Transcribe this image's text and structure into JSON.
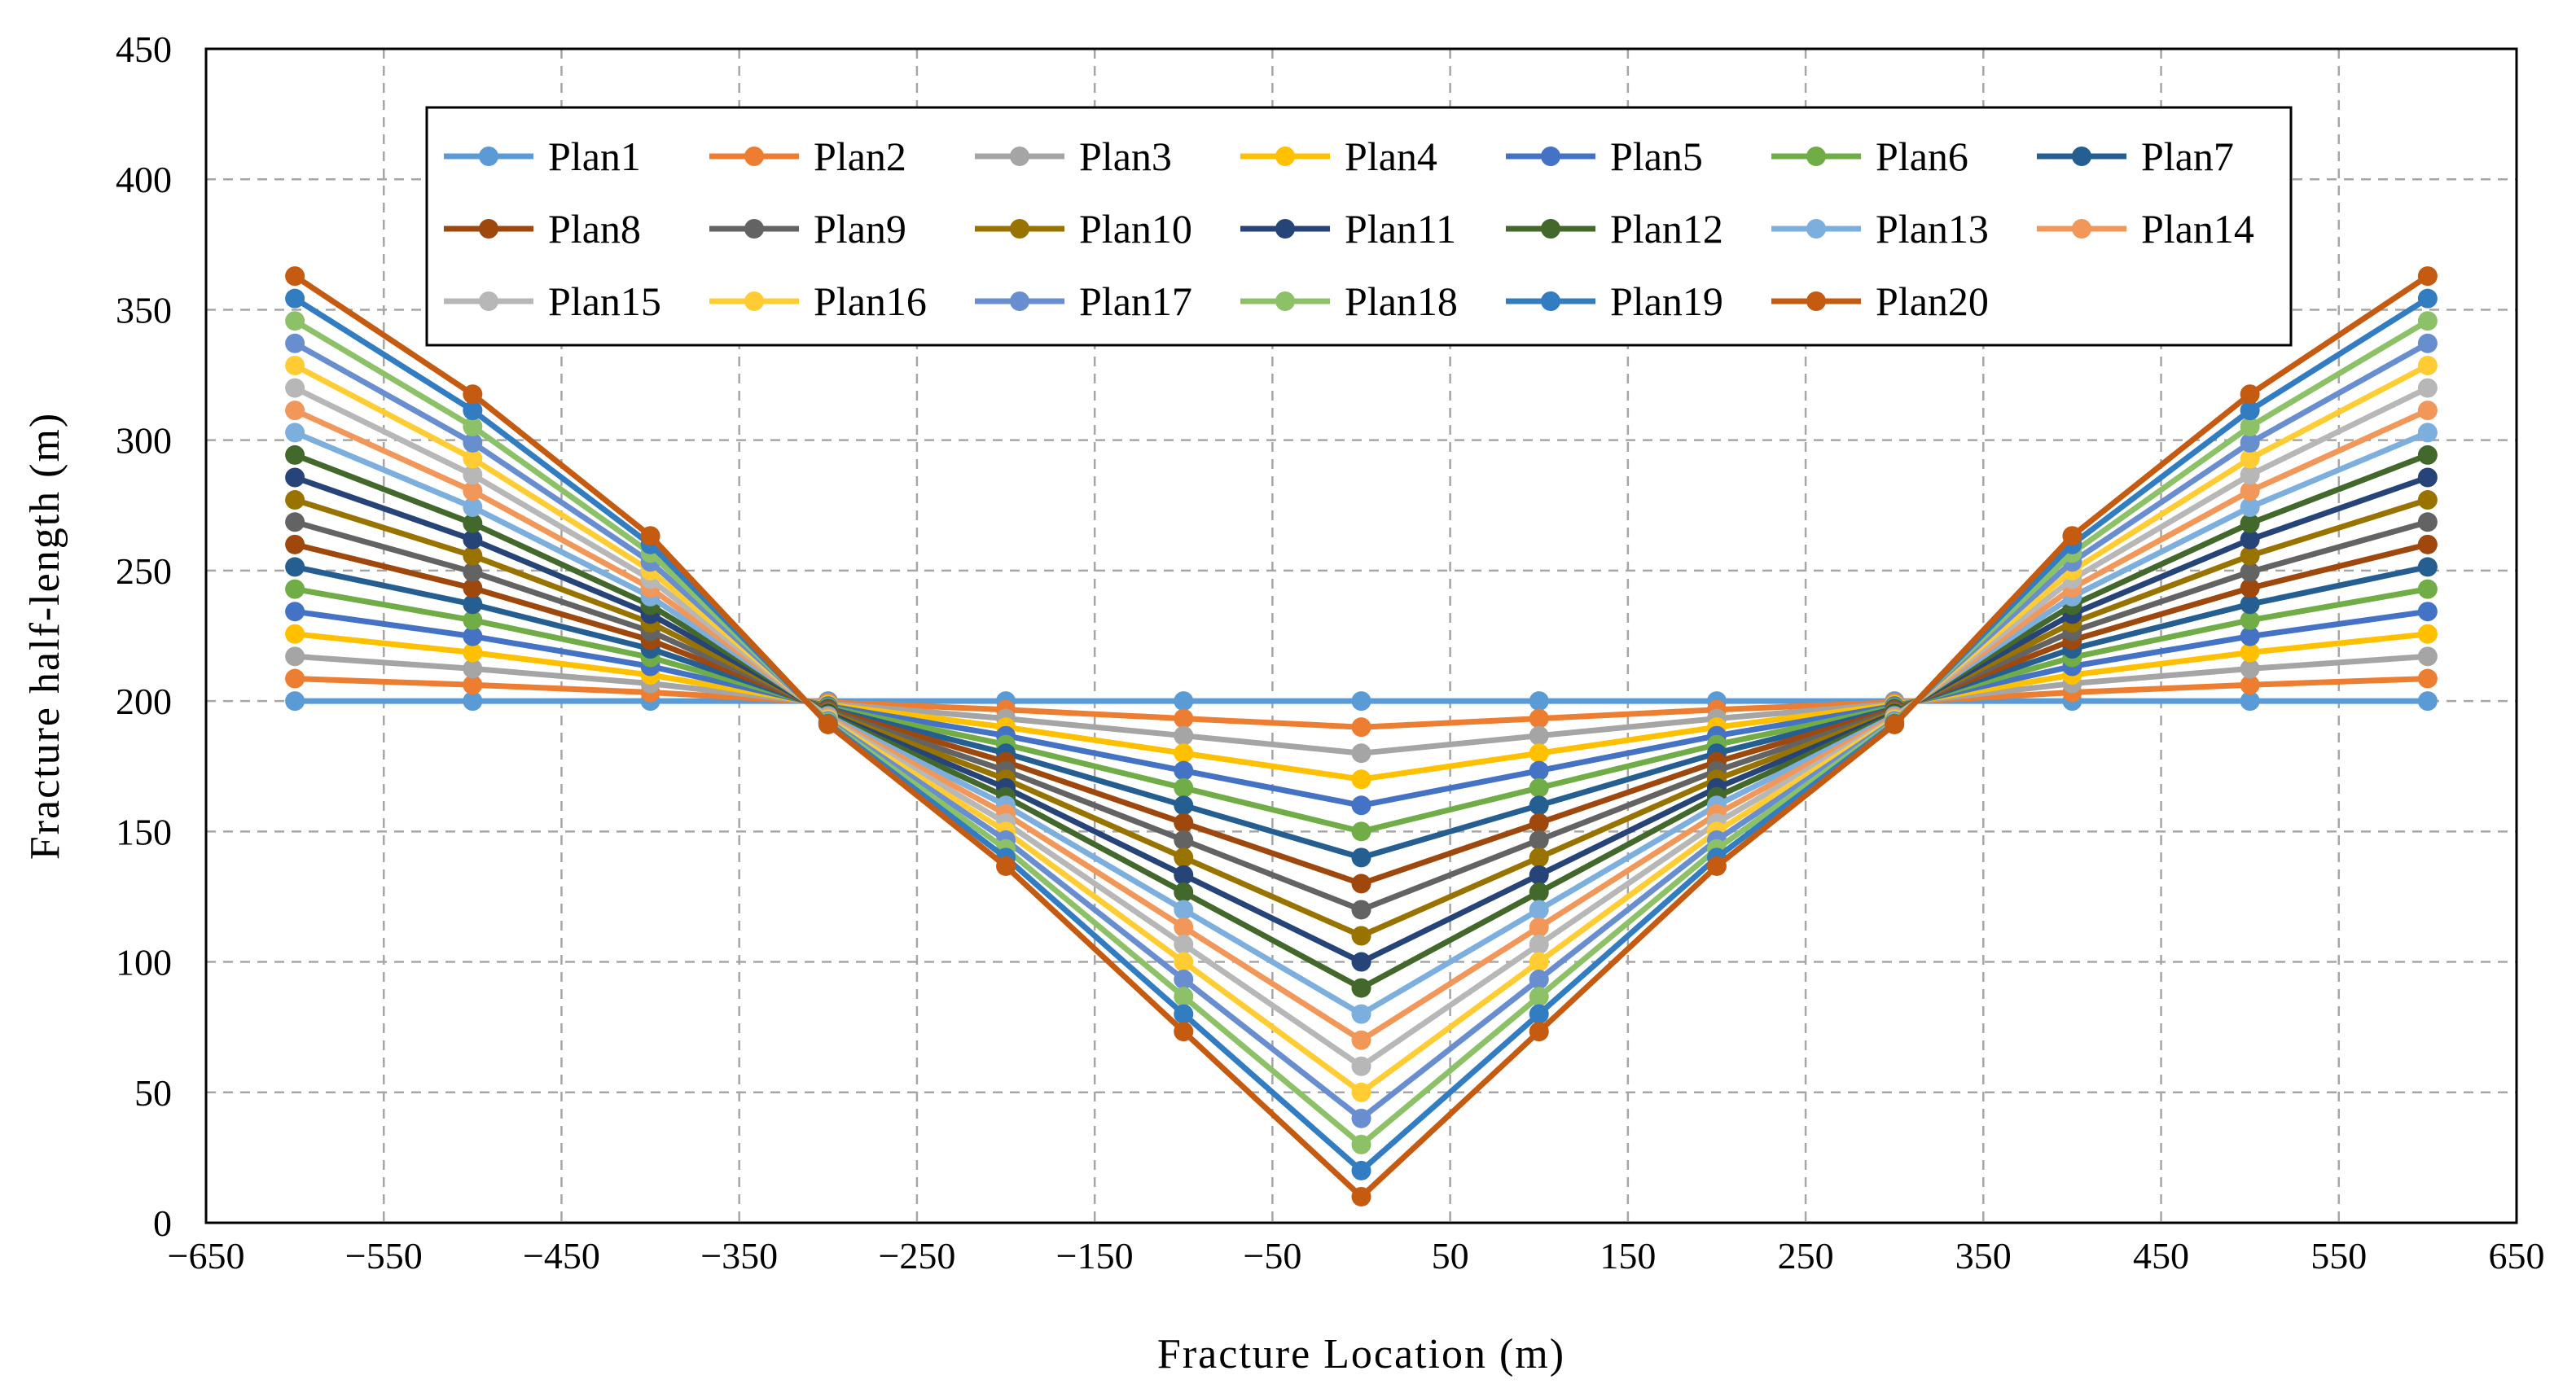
{
  "chart_data": {
    "type": "line",
    "title": "",
    "xlabel": "Fracture Location (m)",
    "ylabel": "Fracture half-length (m)",
    "xlim": [
      -650,
      650
    ],
    "ylim": [
      0,
      450
    ],
    "xticks": [
      -650,
      -550,
      -450,
      -350,
      -250,
      -150,
      -50,
      50,
      150,
      250,
      350,
      450,
      550,
      650
    ],
    "yticks": [
      0,
      50,
      100,
      150,
      200,
      250,
      300,
      350,
      400,
      450
    ],
    "xtick_labels": [
      "−650",
      "−550",
      "−450",
      "−350",
      "−250",
      "−150",
      "−50",
      "50",
      "150",
      "250",
      "350",
      "450",
      "550",
      "650"
    ],
    "ytick_labels": [
      "0",
      "50",
      "100",
      "150",
      "200",
      "250",
      "300",
      "350",
      "400",
      "450"
    ],
    "grid": true,
    "legend_position": "top",
    "x": [
      -600,
      -500,
      -400,
      -300,
      -200,
      -100,
      0,
      100,
      200,
      300,
      400,
      500,
      600
    ],
    "series": [
      {
        "name": "Plan1",
        "color": "#5B9BD5",
        "values": [
          200,
          200,
          200,
          200,
          200,
          200,
          200,
          200,
          200,
          200,
          200,
          200,
          200
        ]
      },
      {
        "name": "Plan2",
        "color": "#ED7D31",
        "values": [
          208.6,
          206.2,
          203.3,
          199.5,
          196.7,
          193.3,
          190,
          193.3,
          196.7,
          199.5,
          203.3,
          206.2,
          208.6
        ]
      },
      {
        "name": "Plan3",
        "color": "#A5A5A5",
        "values": [
          217.1,
          212.4,
          206.7,
          199.0,
          193.3,
          186.7,
          180,
          186.7,
          193.3,
          199.0,
          206.7,
          212.4,
          217.1
        ]
      },
      {
        "name": "Plan4",
        "color": "#FFC000",
        "values": [
          225.7,
          218.6,
          210.0,
          198.6,
          190.0,
          180.0,
          170,
          180.0,
          190.0,
          198.6,
          210.0,
          218.6,
          225.7
        ]
      },
      {
        "name": "Plan5",
        "color": "#4472C4",
        "values": [
          234.3,
          224.8,
          213.3,
          198.1,
          186.7,
          173.3,
          160,
          173.3,
          186.7,
          198.1,
          213.3,
          224.8,
          234.3
        ]
      },
      {
        "name": "Plan6",
        "color": "#70AD47",
        "values": [
          242.9,
          231.0,
          216.7,
          197.6,
          183.3,
          166.7,
          150,
          166.7,
          183.3,
          197.6,
          216.7,
          231.0,
          242.9
        ]
      },
      {
        "name": "Plan7",
        "color": "#255E91",
        "values": [
          251.4,
          237.1,
          220.0,
          197.1,
          180.0,
          160.0,
          140,
          160.0,
          180.0,
          197.1,
          220.0,
          237.1,
          251.4
        ]
      },
      {
        "name": "Plan8",
        "color": "#9E480E",
        "values": [
          260.0,
          243.3,
          223.3,
          196.7,
          176.7,
          153.3,
          130,
          153.3,
          176.7,
          196.7,
          223.3,
          243.3,
          260.0
        ]
      },
      {
        "name": "Plan9",
        "color": "#636363",
        "values": [
          268.6,
          249.5,
          226.7,
          196.2,
          173.3,
          146.7,
          120,
          146.7,
          173.3,
          196.2,
          226.7,
          249.5,
          268.6
        ]
      },
      {
        "name": "Plan10",
        "color": "#997300",
        "values": [
          277.1,
          255.7,
          230.0,
          195.7,
          170.0,
          140.0,
          110,
          140.0,
          170.0,
          195.7,
          230.0,
          255.7,
          277.1
        ]
      },
      {
        "name": "Plan11",
        "color": "#264478",
        "values": [
          285.7,
          261.9,
          233.3,
          195.2,
          166.7,
          133.3,
          100,
          133.3,
          166.7,
          195.2,
          233.3,
          261.9,
          285.7
        ]
      },
      {
        "name": "Plan12",
        "color": "#43682B",
        "values": [
          294.3,
          268.1,
          236.7,
          194.8,
          163.3,
          126.7,
          90,
          126.7,
          163.3,
          194.8,
          236.7,
          268.1,
          294.3
        ]
      },
      {
        "name": "Plan13",
        "color": "#7CAFDD",
        "values": [
          302.9,
          274.3,
          240.0,
          194.3,
          160.0,
          120.0,
          80,
          120.0,
          160.0,
          194.3,
          240.0,
          274.3,
          302.9
        ]
      },
      {
        "name": "Plan14",
        "color": "#F1975A",
        "values": [
          311.4,
          280.5,
          243.3,
          193.8,
          156.7,
          113.3,
          70,
          113.3,
          156.7,
          193.8,
          243.3,
          280.5,
          311.4
        ]
      },
      {
        "name": "Plan15",
        "color": "#B7B7B7",
        "values": [
          320.0,
          286.7,
          246.7,
          193.3,
          153.3,
          106.7,
          60,
          106.7,
          153.3,
          193.3,
          246.7,
          286.7,
          320.0
        ]
      },
      {
        "name": "Plan16",
        "color": "#FFCD33",
        "values": [
          328.6,
          292.9,
          250.0,
          192.9,
          150.0,
          100.0,
          50,
          100.0,
          150.0,
          192.9,
          250.0,
          292.9,
          328.6
        ]
      },
      {
        "name": "Plan17",
        "color": "#698ED0",
        "values": [
          337.1,
          299.0,
          253.3,
          192.4,
          146.7,
          93.3,
          40,
          93.3,
          146.7,
          192.4,
          253.3,
          299.0,
          337.1
        ]
      },
      {
        "name": "Plan18",
        "color": "#8CC168",
        "values": [
          345.7,
          305.2,
          256.7,
          191.9,
          143.3,
          86.7,
          30,
          86.7,
          143.3,
          191.9,
          256.7,
          305.2,
          345.7
        ]
      },
      {
        "name": "Plan19",
        "color": "#327DC2",
        "values": [
          354.3,
          311.4,
          260.0,
          191.4,
          140.0,
          80.0,
          20,
          80.0,
          140.0,
          191.4,
          260.0,
          311.4,
          354.3
        ]
      },
      {
        "name": "Plan20",
        "color": "#C55A11",
        "values": [
          362.9,
          317.6,
          263.3,
          191.0,
          136.7,
          73.3,
          10,
          73.3,
          136.7,
          191.0,
          263.3,
          317.6,
          362.9
        ]
      }
    ]
  }
}
